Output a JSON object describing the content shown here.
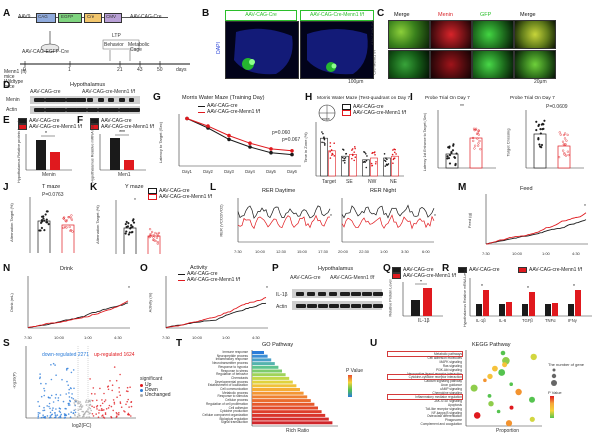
{
  "panels": {
    "A": {
      "label": "A",
      "vectors": [
        "AAV9",
        "CAG",
        "EGFP",
        "Cre",
        "CMV",
        "Cre"
      ],
      "vector_right": "AAV-CAG-Cre",
      "vector_left": "AAV-CAG-EGFP-Cre",
      "mouse": "Menn1 (fl) mice Wildtype mice",
      "bottom_line": "Stereotaxic injection of AAV",
      "timeline_ticks": [
        "0",
        "1",
        "21",
        "43",
        "50",
        "days"
      ],
      "tests": [
        "LTP",
        "Behavior",
        "Metabolic",
        "Cage"
      ]
    },
    "B": {
      "label": "B",
      "left_title": "AAV-CAG-Cre",
      "right_title": "AAV-CAG-Cre-Menn1 f/f",
      "side": "DAPI",
      "scale": "100μm"
    },
    "C": {
      "label": "C",
      "cols": [
        "Merge",
        "Menin",
        "GFP",
        "Merge"
      ],
      "rows": [
        "AAV-CAG-Cre",
        "Cre-Menn1 f/f"
      ],
      "scale": "20μm"
    },
    "D": {
      "label": "D",
      "title": "Hypothalamus",
      "groups": [
        "AAV-CAG-cre",
        "AAV-CAG-cre-Menn1 f/f"
      ],
      "rows": [
        "Menin",
        "Actin"
      ]
    },
    "E": {
      "label": "E",
      "legend": [
        "AAV-CAG-cre",
        "AAV-CAG-cre-Menn1 f/f"
      ],
      "ylabel": "Hypothalamus Relative protein Level",
      "xlabel": "Menin",
      "sig": "*"
    },
    "F": {
      "label": "F",
      "legend": [
        "AAV-CAG-cre",
        "AAV-CAG-cre-Menn1 f/f"
      ],
      "ylabel": "Hypothalamus Relative mRNA Level",
      "xlabel": "Men1",
      "sig": "***"
    },
    "G": {
      "label": "G",
      "title": "Morris Water Maze (Training Day)",
      "legend": [
        "AAV-CAG-cre",
        "AAV-CAG-cre-Menn1 f/f"
      ],
      "ylabel": "Latency to Target (Sec)",
      "p_values": [
        "p=0.060",
        "p=0.067"
      ]
    },
    "H": {
      "label": "H",
      "title": "Morris Water Maze (Test-quadrant on Day 7)",
      "legend": [
        "AAV-CAG-cre",
        "AAV-CAG-cre-Menn1 f/f"
      ],
      "ylabel": "Time in Zone (%)",
      "categories": [
        "Target",
        "SE",
        "NW",
        "NE"
      ],
      "sig": "****"
    },
    "I": {
      "label": "I",
      "left_title": "Probe Trial On Day 7",
      "right_title": "Probe Trial On Day 7",
      "left_ylabel": "Latency 1st Entrance to Target (Sec)",
      "right_ylabel": "Target Crossing",
      "sig": "**",
      "p_value": "P=0.0609"
    },
    "J": {
      "label": "J",
      "title": "T maze",
      "ylabel": "Alternation Target (%)",
      "p_value": "P=0.0763"
    },
    "K": {
      "label": "K",
      "title": "Y maze",
      "legend": [
        "AAV-CAG-cre",
        "AAV-CAG-cre-Menn1 f/f"
      ],
      "ylabel": "Alternation Target (%)",
      "sig": "*"
    },
    "L": {
      "label": "L",
      "left_title": "RER Daytime",
      "right_title": "RER Night",
      "ylabel": "RER (VCO2/VO2)",
      "left_ticks": [
        "7:30",
        "10:00",
        "12:30",
        "15:00",
        "17:30"
      ],
      "right_ticks": [
        "20:00",
        "22:30",
        "1:00",
        "3:30",
        "6:00"
      ],
      "sig": "*"
    },
    "M": {
      "label": "M",
      "title": "Feed",
      "ylabel": "Feed (g)",
      "ticks": [
        "7:30",
        "10:00",
        "1:00",
        "4:30"
      ],
      "sig": "*"
    },
    "N": {
      "label": "N",
      "title": "Drink",
      "ylabel": "Drink (mL)",
      "ticks": [
        "7:30",
        "10:00",
        "1:00",
        "4:30"
      ],
      "sig": "*"
    },
    "O": {
      "label": "O",
      "title": "Activity",
      "legend": [
        "AAV-CAG-cre",
        "AAV-CAG-cre-Menn1 f/f"
      ],
      "ylabel": "Activity (m)",
      "ticks": [
        "7:30",
        "10:00",
        "1:00",
        "4:30"
      ],
      "sig": "*"
    },
    "P": {
      "label": "P",
      "title": "Hypothalamus",
      "groups": [
        "AAV-CAG-cre",
        "AAV-CAG-Menn1 f/f"
      ],
      "rows": [
        "IL-1β",
        "Actin"
      ]
    },
    "Q": {
      "label": "Q",
      "legend": [
        "AAV-CAG-cre",
        "AAV-CAG-cre-Menn1 f/f"
      ],
      "ylabel": "Relative Protein Level",
      "xlabel": "IL-1β",
      "sig": "*"
    },
    "R": {
      "label": "R",
      "legend": [
        "AAV-CAG-cre",
        "AAV-CAG-cre-Menn1 f/f"
      ],
      "ylabel": "Hypothalamus Relative mRNA Level",
      "categories": [
        "IL-1β",
        "IL-6",
        "TGFβ",
        "TNFα",
        "IFNγ"
      ],
      "sigs": [
        "*",
        "",
        "*",
        "",
        "*"
      ]
    },
    "S": {
      "label": "S",
      "left_note": "down-regulated 2271",
      "right_note": "up-regulated 1624",
      "legend_title": "significant",
      "legend_items": [
        "Up",
        "Down",
        "Unchanged"
      ],
      "xlabel": "log2(FC)",
      "ylabel": "-log10(P)"
    },
    "T": {
      "label": "T",
      "title": "GO Pathway",
      "xlabel": "Rich Ratio",
      "legend_title": "P Value",
      "terms": [
        "Immune response",
        "Neuropeptide process",
        "Inflammatory response",
        "Neurotransmitter process",
        "Response to hypoxia",
        "Response to stress",
        "Regulation of behavior",
        "Chemotaxis",
        "Developmental process",
        "Establishment of localization",
        "Cell communication",
        "Metabolic process",
        "Response to stimulus",
        "Cellular process",
        "Regulation of cell proliferation",
        "Cell adhesion",
        "Cytokine production",
        "Cellular component organization",
        "Biological regulation",
        "Signal transduction"
      ]
    },
    "U": {
      "label": "U",
      "title": "KEGG Pathway",
      "xlabel": "Proportion",
      "legend_title_1": "The number of gene",
      "legend_title_2": "P Value",
      "terms": [
        "Metabolic pathways",
        "Cell adhesion molecules",
        "MAPK signaling",
        "Ras signaling",
        "PI3K-Akt signaling",
        "Neuroactive ligand-receptor interaction",
        "Cytokine-cytokine receptor interaction",
        "Calcium signaling pathway",
        "Axon guidance",
        "cAMP signaling",
        "Chemokine signaling",
        "Inflammatory mediator regulation",
        "JAK-STAT signaling",
        "Apoptosis",
        "Toll-like receptor signaling",
        "NF-kappa B signaling",
        "Osteoclast differentiation",
        "Phagosome",
        "Complement and coagulation"
      ]
    }
  },
  "colors": {
    "control": "#1a1a1a",
    "knockout": "#e0191e",
    "gfp": "#2bbf2b",
    "menin": "#d8242a",
    "dapi": "#1c2db8"
  }
}
